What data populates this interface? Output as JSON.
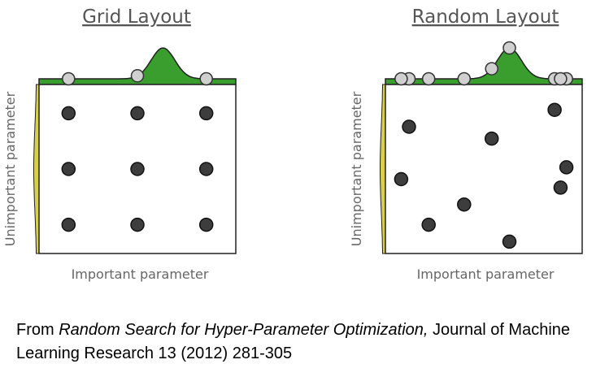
{
  "panels": [
    {
      "id": "grid",
      "title": "Grid Layout",
      "xlabel": "Important parameter",
      "ylabel": "Unimportant parameter",
      "points": [
        [
          0.15,
          0.17
        ],
        [
          0.5,
          0.17
        ],
        [
          0.85,
          0.17
        ],
        [
          0.15,
          0.5
        ],
        [
          0.5,
          0.5
        ],
        [
          0.85,
          0.5
        ],
        [
          0.15,
          0.83
        ],
        [
          0.5,
          0.83
        ],
        [
          0.85,
          0.83
        ]
      ]
    },
    {
      "id": "random",
      "title": "Random Layout",
      "xlabel": "Important parameter",
      "ylabel": "Unimportant parameter",
      "points": [
        [
          0.12,
          0.25
        ],
        [
          0.54,
          0.32
        ],
        [
          0.86,
          0.15
        ],
        [
          0.08,
          0.56
        ],
        [
          0.92,
          0.49
        ],
        [
          0.89,
          0.61
        ],
        [
          0.4,
          0.71
        ],
        [
          0.22,
          0.83
        ],
        [
          0.63,
          0.93
        ]
      ]
    }
  ],
  "caption": {
    "prefix": "From ",
    "title": "Random Search for Hyper-Parameter Optimization,",
    "suffix": " Journal of Machine Learning Research 13 (2012) 281-305"
  },
  "colors": {
    "important_density": "#3a9e2e",
    "unimportant_density": "#d8d04a",
    "point_fill": "#3d3d3d",
    "point_stroke": "#111111",
    "projection_fill": "#d0d0d0"
  }
}
